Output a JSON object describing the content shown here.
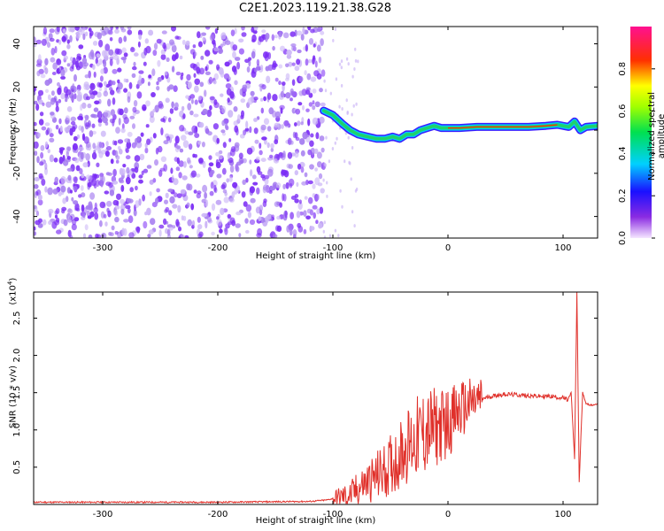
{
  "title": "C2E1.2023.119.21.38.G28",
  "colors": {
    "snr_line": "#e0302a",
    "scatter": "#7b2cf5",
    "scatter_light": "#cdb8f7",
    "track": "#1fd26b"
  },
  "chart_data": [
    {
      "type": "heatmap",
      "xlabel": "Height of straight line (km)",
      "ylabel": "Frequency (Hz)",
      "xlim": [
        -360,
        130
      ],
      "ylim": [
        -50,
        48
      ],
      "x_ticks": [
        -300,
        -200,
        -100,
        0,
        100
      ],
      "y_ticks": [
        -40,
        -20,
        0,
        20,
        40
      ],
      "x_tick_labels": [
        "-300",
        "-200",
        "-100",
        "0",
        "100"
      ],
      "y_tick_labels": [
        "-40",
        "-20",
        "0",
        "20",
        "40"
      ],
      "grid": false,
      "noise_region_x": [
        -360,
        -108
      ],
      "track": {
        "x": [
          -108,
          -100,
          -92,
          -85,
          -78,
          -70,
          -62,
          -55,
          -48,
          -42,
          -36,
          -30,
          -24,
          -18,
          -12,
          -6,
          0,
          10,
          25,
          40,
          55,
          70,
          85,
          95,
          105,
          110,
          115,
          120,
          130
        ],
        "y": [
          9,
          7,
          3,
          0,
          -2,
          -3,
          -4,
          -4,
          -3,
          -4,
          -2,
          -2,
          0,
          1,
          2,
          1,
          1,
          1,
          1.5,
          1.5,
          1.5,
          1.5,
          2,
          2.5,
          1.5,
          4,
          0,
          1.5,
          2
        ]
      },
      "colorbar": {
        "label": "Normalized spectral amplitude",
        "ticks": [
          0.0,
          0.2,
          0.4,
          0.6,
          0.8
        ],
        "tick_labels": [
          "0.0",
          "0.2",
          "0.4",
          "0.6",
          "0.8"
        ],
        "range": [
          0,
          1
        ]
      }
    },
    {
      "type": "line",
      "xlabel": "Height of straight line (km)",
      "ylabel": "SNR (10 * v/v)",
      "y_multiplier_label": "(x10",
      "y_multiplier_exp": "4",
      "y_multiplier_close": ")",
      "xlim": [
        -360,
        130
      ],
      "ylim": [
        0,
        2.85
      ],
      "x_ticks": [
        -300,
        -200,
        -100,
        0,
        100
      ],
      "y_ticks": [
        0.5,
        1.0,
        1.5,
        2.0,
        2.5
      ],
      "x_tick_labels": [
        "-300",
        "-200",
        "-100",
        "0",
        "100"
      ],
      "y_tick_labels": [
        "0.5",
        "1.0",
        "1.5",
        "2.0",
        "2.5"
      ],
      "grid": false,
      "series": [
        {
          "x": [
            -360,
            -300,
            -200,
            -120,
            -105,
            -95,
            -85,
            -75,
            -65,
            -55,
            -45,
            -38,
            -30,
            -22,
            -15,
            -8,
            0,
            10,
            20,
            30,
            40,
            50,
            60,
            70,
            80,
            90,
            100,
            104,
            107,
            110,
            112,
            114,
            117,
            120,
            125,
            130
          ],
          "y": [
            0.03,
            0.03,
            0.03,
            0.04,
            0.06,
            0.1,
            0.12,
            0.25,
            0.35,
            0.45,
            0.6,
            0.75,
            0.85,
            0.95,
            1.0,
            1.05,
            1.1,
            1.25,
            1.35,
            1.42,
            1.46,
            1.48,
            1.47,
            1.46,
            1.45,
            1.45,
            1.43,
            1.4,
            1.5,
            0.6,
            2.85,
            0.3,
            1.5,
            1.35,
            1.33,
            1.35
          ]
        }
      ]
    }
  ]
}
